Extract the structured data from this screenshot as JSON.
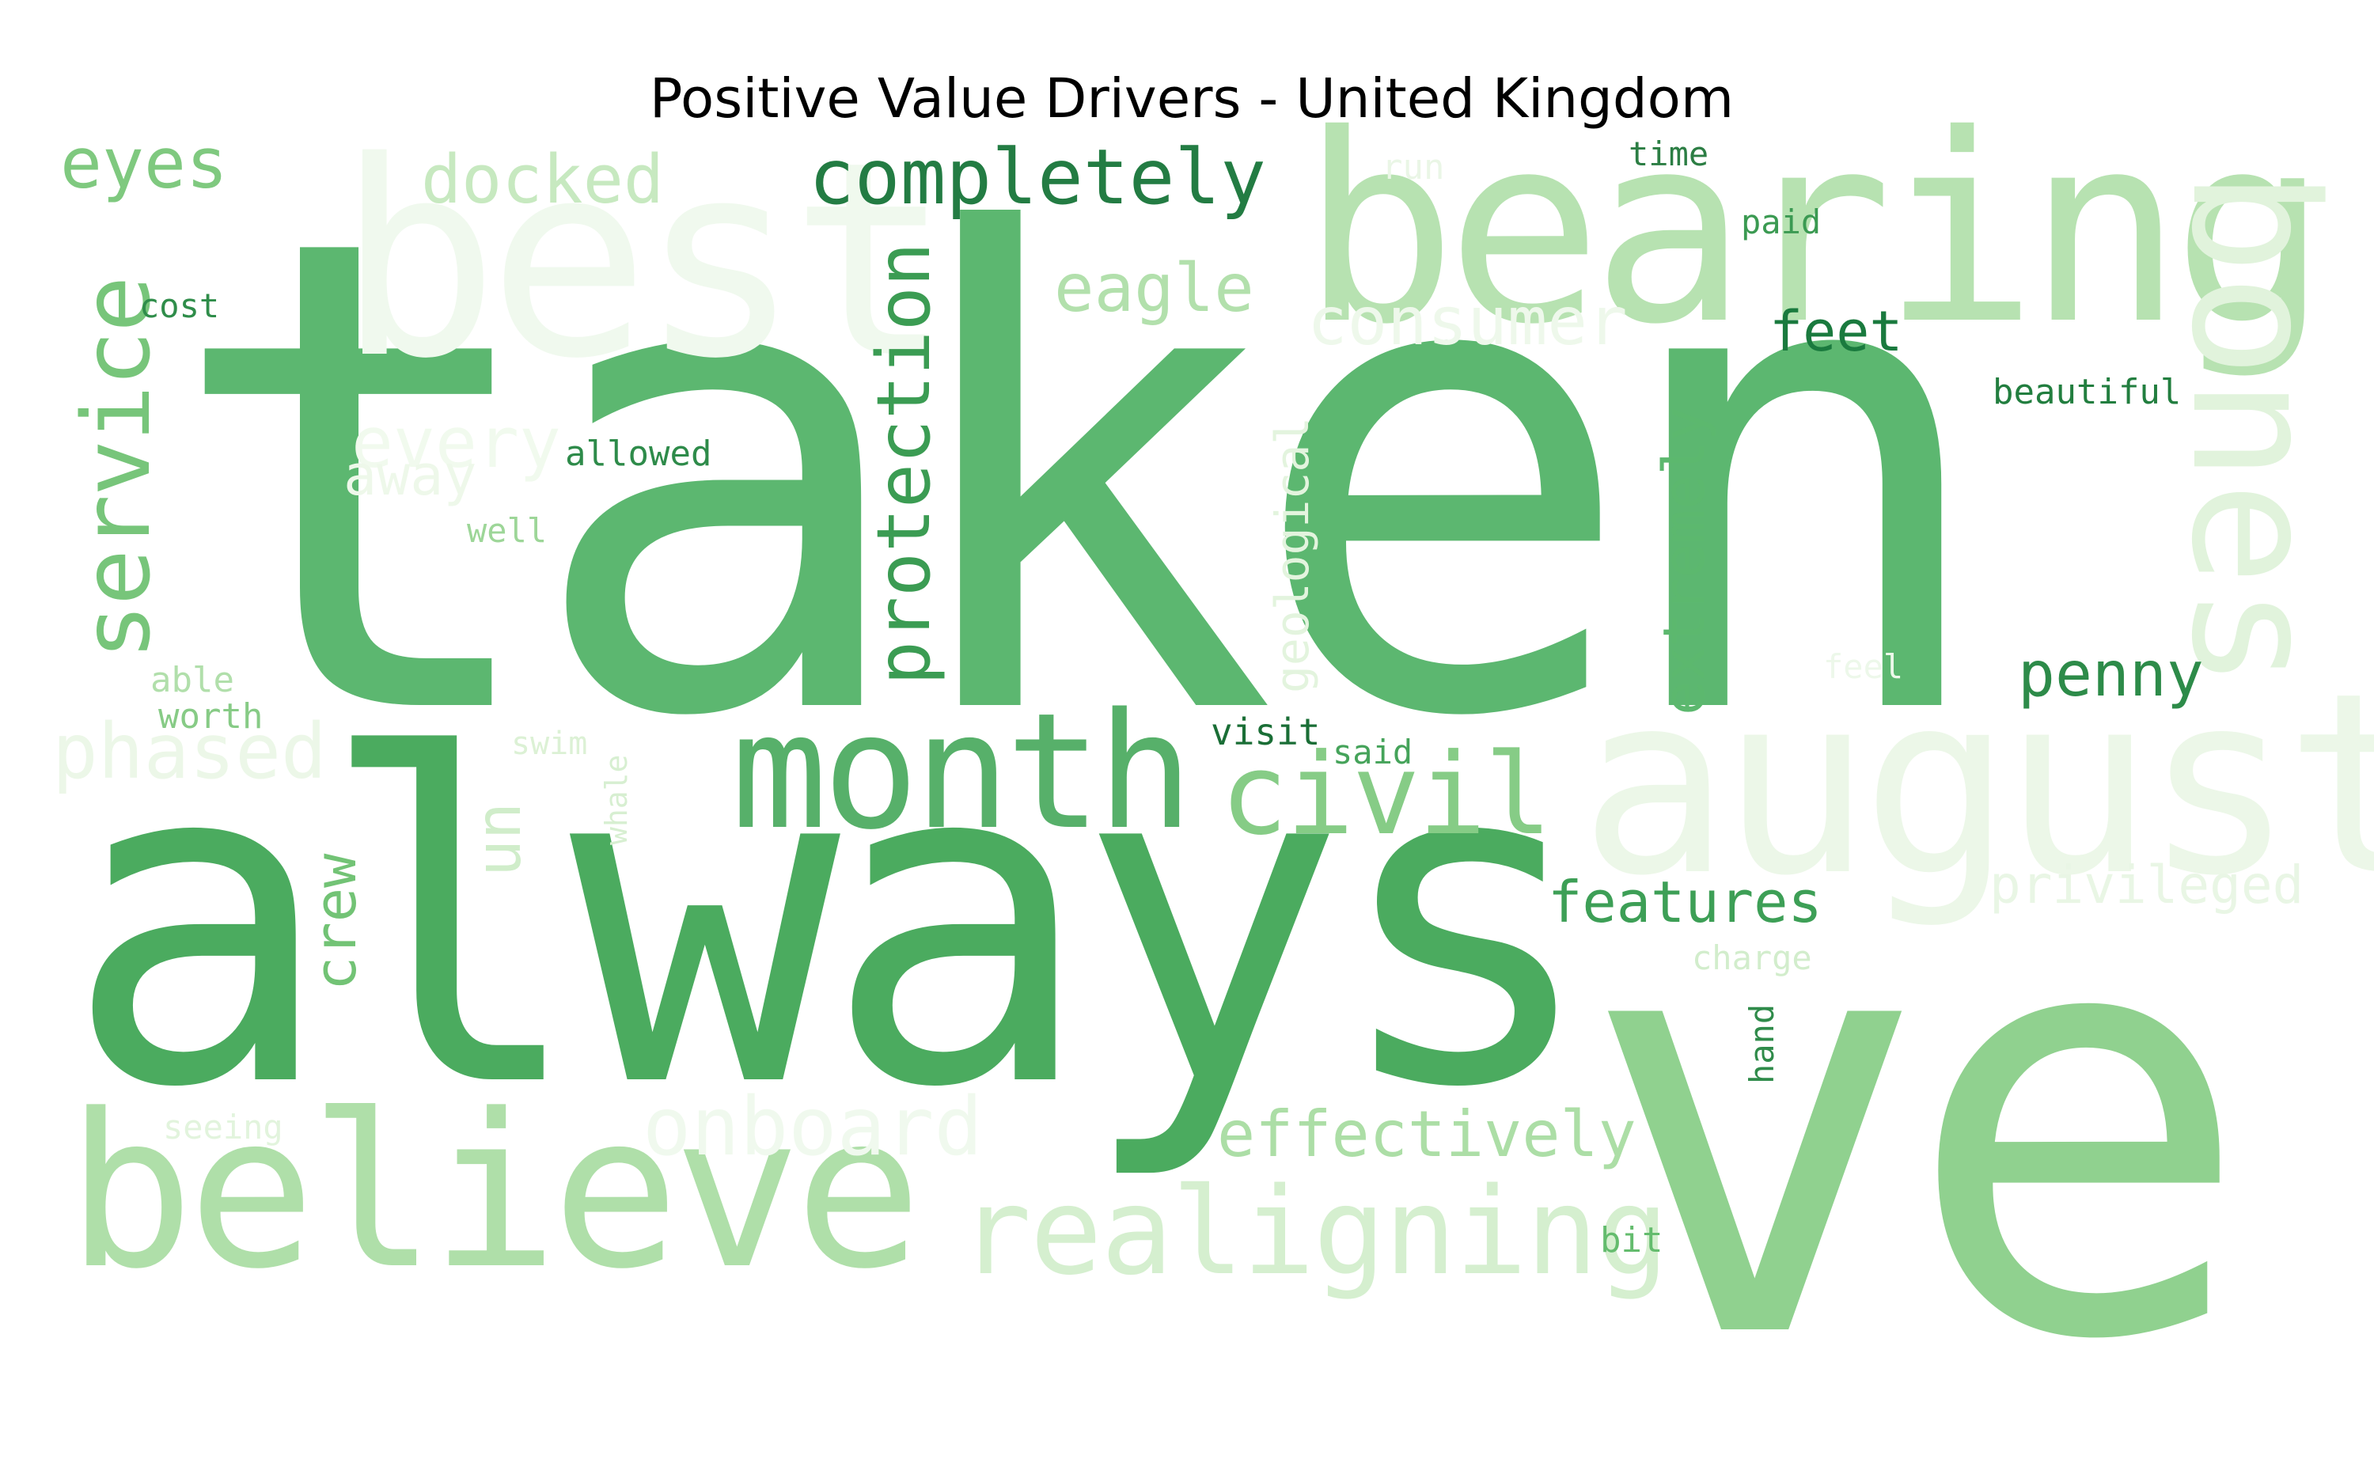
{
  "chart": {
    "title": "Positive Value Drivers - United Kingdom"
  },
  "words": [
    {
      "text": "taken",
      "color": "#5cb770"
    },
    {
      "text": "always",
      "color": "#4bab5f"
    },
    {
      "text": "ve",
      "color": "#90d18f"
    },
    {
      "text": "bearing",
      "color": "#b7e2b1"
    },
    {
      "text": "best",
      "color": "#f0f9ee"
    },
    {
      "text": "august",
      "color": "#ecf7e8"
    },
    {
      "text": "believe",
      "color": "#afdfa9"
    },
    {
      "text": "month",
      "color": "#57b06a"
    },
    {
      "text": "bones",
      "color": "#e1f3dc"
    },
    {
      "text": "realigning",
      "color": "#d5efcf"
    },
    {
      "text": "civil",
      "color": "#86cc86"
    },
    {
      "text": "service",
      "color": "#77c57a"
    },
    {
      "text": "completely",
      "color": "#237c43"
    },
    {
      "text": "protection",
      "color": "#3b9c53"
    },
    {
      "text": "eyes",
      "color": "#7fc97f"
    },
    {
      "text": "docked",
      "color": "#c7e9c0"
    },
    {
      "text": "onboard",
      "color": "#f0f9ee"
    },
    {
      "text": "effectively",
      "color": "#acdea6"
    },
    {
      "text": "eagle",
      "color": "#b2e0ac"
    },
    {
      "text": "consumer",
      "color": "#eef8eb"
    },
    {
      "text": "phased",
      "color": "#ecf7e8"
    },
    {
      "text": "crew",
      "color": "#72c375"
    },
    {
      "text": "extremely",
      "color": "#5cb86e"
    },
    {
      "text": "penny",
      "color": "#2d8b49"
    },
    {
      "text": "features",
      "color": "#3d9f56"
    },
    {
      "text": "feet",
      "color": "#1a7a3e"
    },
    {
      "text": "privileged",
      "color": "#e9f6e5"
    },
    {
      "text": "every",
      "color": "#f1faee"
    },
    {
      "text": "away",
      "color": "#eef8ea"
    },
    {
      "text": "geological",
      "color": "#e3f4de"
    },
    {
      "text": "un",
      "color": "#d0edca"
    },
    {
      "text": "allowed",
      "color": "#2e8b4a"
    },
    {
      "text": "beautiful",
      "color": "#227e3f"
    },
    {
      "text": "visit",
      "color": "#1a6e36"
    },
    {
      "text": "time",
      "color": "#2c7e44"
    },
    {
      "text": "paid",
      "color": "#3b9a52"
    },
    {
      "text": "run",
      "color": "#eaf6e6"
    },
    {
      "text": "cost",
      "color": "#2f8d4a"
    },
    {
      "text": "well",
      "color": "#9dd698"
    },
    {
      "text": "able",
      "color": "#b1dfab"
    },
    {
      "text": "worth",
      "color": "#87cb86"
    },
    {
      "text": "swim",
      "color": "#dcf1d5"
    },
    {
      "text": "whale",
      "color": "#d7efd1"
    },
    {
      "text": "said",
      "color": "#45a35a"
    },
    {
      "text": "feel",
      "color": "#edf8ea"
    },
    {
      "text": "charge",
      "color": "#d2edcc"
    },
    {
      "text": "hand",
      "color": "#2f8b4a"
    },
    {
      "text": "bit",
      "color": "#64bc6e"
    },
    {
      "text": "seeing",
      "color": "#e2f4dd"
    }
  ]
}
